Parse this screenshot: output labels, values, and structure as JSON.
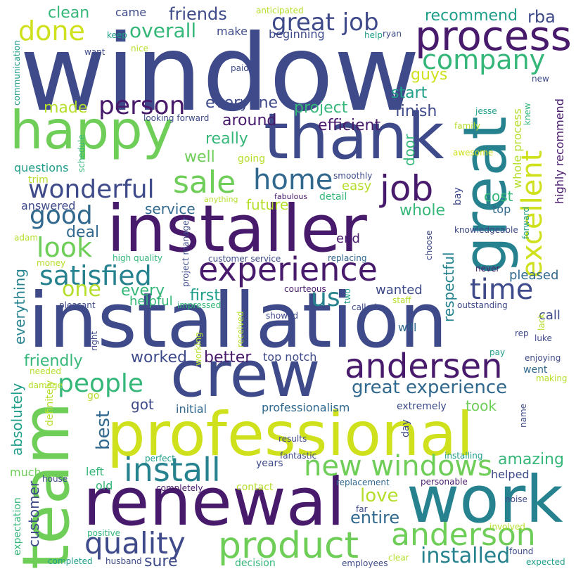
{
  "palette": {
    "dark_purple": "#481a6c",
    "indigo": "#3e4a89",
    "blue": "#31688e",
    "teal": "#26828e",
    "green_teal": "#1f9e89",
    "green": "#35b779",
    "light_green": "#6ece58",
    "yellow_green": "#b5de2b",
    "yellow": "#cfe11c"
  },
  "words": [
    {
      "text": "window",
      "color": "#3e4a89"
    },
    {
      "text": "installation",
      "color": "#3e4a89"
    },
    {
      "text": "installer",
      "color": "#481a6c"
    },
    {
      "text": "thank",
      "color": "#3e4a89"
    },
    {
      "text": "happy",
      "color": "#6ece58"
    },
    {
      "text": "professional",
      "color": "#cfe11c"
    },
    {
      "text": "crew",
      "color": "#3e4a89"
    },
    {
      "text": "renewal",
      "color": "#481a6c"
    },
    {
      "text": "work",
      "color": "#26828e"
    },
    {
      "text": "team",
      "color": "#6ece58"
    },
    {
      "text": "great",
      "color": "#26828e"
    },
    {
      "text": "process",
      "color": "#481a6c"
    },
    {
      "text": "experience",
      "color": "#481a6c"
    },
    {
      "text": "product",
      "color": "#6ece58"
    },
    {
      "text": "quality",
      "color": "#3e4a89"
    },
    {
      "text": "andersen",
      "color": "#481a6c"
    },
    {
      "text": "anderson",
      "color": "#6ece58"
    },
    {
      "text": "new windows",
      "color": "#6ece58"
    },
    {
      "text": "install",
      "color": "#26828e"
    },
    {
      "text": "job",
      "color": "#481a6c"
    },
    {
      "text": "company",
      "color": "#35b779"
    },
    {
      "text": "excellent",
      "color": "#cfe11c"
    },
    {
      "text": "sale",
      "color": "#6ece58"
    },
    {
      "text": "home",
      "color": "#31688e"
    },
    {
      "text": "wonderful",
      "color": "#3e4a89"
    },
    {
      "text": "time",
      "color": "#3e4a89"
    },
    {
      "text": "satisfied",
      "color": "#26828e"
    },
    {
      "text": "look",
      "color": "#6ece58"
    },
    {
      "text": "good",
      "color": "#31688e"
    },
    {
      "text": "person",
      "color": "#481a6c"
    },
    {
      "text": "done",
      "color": "#cfe11c"
    },
    {
      "text": "great job",
      "color": "#3e4a89"
    },
    {
      "text": "people",
      "color": "#35b779"
    },
    {
      "text": "great experience",
      "color": "#31688e"
    },
    {
      "text": "installed",
      "color": "#26828e"
    },
    {
      "text": "us",
      "color": "#26828e"
    },
    {
      "text": "one",
      "color": "#b5de2b"
    },
    {
      "text": "overall",
      "color": "#35b779"
    },
    {
      "text": "best",
      "color": "#31688e"
    },
    {
      "text": "love",
      "color": "#b5de2b"
    },
    {
      "text": "entire",
      "color": "#31688e"
    },
    {
      "text": "amazing",
      "color": "#35b779"
    },
    {
      "text": "sure",
      "color": "#3e4a89"
    },
    {
      "text": "friends",
      "color": "#3e4a89"
    },
    {
      "text": "clean",
      "color": "#35b779"
    },
    {
      "text": "came",
      "color": "#3e4a89"
    },
    {
      "text": "recommend",
      "color": "#1f9e89"
    },
    {
      "text": "rba",
      "color": "#3e4a89"
    },
    {
      "text": "anticipated",
      "color": "#b5de2b"
    },
    {
      "text": "keep",
      "color": "#1f9e89"
    },
    {
      "text": "make",
      "color": "#3e4a89"
    },
    {
      "text": "beginning",
      "color": "#3e4a89"
    },
    {
      "text": "help",
      "color": "#1f9e89"
    },
    {
      "text": "ryan",
      "color": "#3e4a89"
    },
    {
      "text": "want",
      "color": "#3e4a89"
    },
    {
      "text": "nice",
      "color": "#b5de2b"
    },
    {
      "text": "paid",
      "color": "#3e4a89"
    },
    {
      "text": "guys",
      "color": "#cfe11c"
    },
    {
      "text": "start",
      "color": "#1f9e89"
    },
    {
      "text": "finish",
      "color": "#3e4a89"
    },
    {
      "text": "project",
      "color": "#35b779"
    },
    {
      "text": "made",
      "color": "#b5de2b"
    },
    {
      "text": "everyone",
      "color": "#3e4a89"
    },
    {
      "text": "around",
      "color": "#481a6c"
    },
    {
      "text": "efficient",
      "color": "#481a6c"
    },
    {
      "text": "really",
      "color": "#35b779"
    },
    {
      "text": "well",
      "color": "#6ece58"
    },
    {
      "text": "going",
      "color": "#b5de2b"
    },
    {
      "text": "easy",
      "color": "#b5de2b"
    },
    {
      "text": "future",
      "color": "#b5de2b"
    },
    {
      "text": "whole",
      "color": "#35b779"
    },
    {
      "text": "cost",
      "color": "#35b779"
    },
    {
      "text": "top",
      "color": "#31688e"
    },
    {
      "text": "service",
      "color": "#31688e"
    },
    {
      "text": "deal",
      "color": "#31688e"
    },
    {
      "text": "answered",
      "color": "#3e4a89"
    },
    {
      "text": "questions",
      "color": "#1f9e89"
    },
    {
      "text": "trim",
      "color": "#b5de2b"
    },
    {
      "text": "end",
      "color": "#481a6c"
    },
    {
      "text": "detail",
      "color": "#35b779"
    },
    {
      "text": "anything",
      "color": "#b5de2b"
    },
    {
      "text": "fabulous",
      "color": "#481a6c"
    },
    {
      "text": "smoothly",
      "color": "#3e4a89"
    },
    {
      "text": "every",
      "color": "#35b779"
    },
    {
      "text": "first",
      "color": "#1f9e89"
    },
    {
      "text": "helpful",
      "color": "#35b779"
    },
    {
      "text": "high quality",
      "color": "#35b779"
    },
    {
      "text": "customer service",
      "color": "#3e4a89"
    },
    {
      "text": "replacing",
      "color": "#31688e"
    },
    {
      "text": "courteous",
      "color": "#481a6c"
    },
    {
      "text": "pleasant",
      "color": "#3e4a89"
    },
    {
      "text": "impressed",
      "color": "#35b779"
    },
    {
      "text": "showed",
      "color": "#3e4a89"
    },
    {
      "text": "called",
      "color": "#3e4a89"
    },
    {
      "text": "staff",
      "color": "#b5de2b"
    },
    {
      "text": "wanted",
      "color": "#3e4a89"
    },
    {
      "text": "pleased",
      "color": "#31688e"
    },
    {
      "text": "outstanding",
      "color": "#3e4a89"
    },
    {
      "text": "call",
      "color": "#3e4a89"
    },
    {
      "text": "will",
      "color": "#31688e"
    },
    {
      "text": "rep",
      "color": "#3e4a89"
    },
    {
      "text": "luke",
      "color": "#3e4a89"
    },
    {
      "text": "pay",
      "color": "#1f9e89"
    },
    {
      "text": "enjoying",
      "color": "#3e4a89"
    },
    {
      "text": "went",
      "color": "#31688e"
    },
    {
      "text": "making",
      "color": "#b5de2b"
    },
    {
      "text": "worked",
      "color": "#3e4a89"
    },
    {
      "text": "better",
      "color": "#481a6c"
    },
    {
      "text": "top notch",
      "color": "#3e4a89"
    },
    {
      "text": "friendly",
      "color": "#35b779"
    },
    {
      "text": "needed",
      "color": "#b5de2b"
    },
    {
      "text": "damage",
      "color": "#b5de2b"
    },
    {
      "text": "got",
      "color": "#3e4a89"
    },
    {
      "text": "initial",
      "color": "#31688e"
    },
    {
      "text": "professionalism",
      "color": "#31688e"
    },
    {
      "text": "extremely",
      "color": "#3e4a89"
    },
    {
      "text": "took",
      "color": "#6ece58"
    },
    {
      "text": "go",
      "color": "#b5de2b"
    },
    {
      "text": "results",
      "color": "#3e4a89"
    },
    {
      "text": "much",
      "color": "#6ece58"
    },
    {
      "text": "perfect",
      "color": "#1f9e89"
    },
    {
      "text": "fantastic",
      "color": "#3e4a89"
    },
    {
      "text": "installing",
      "color": "#1f9e89"
    },
    {
      "text": "years",
      "color": "#3e4a89"
    },
    {
      "text": "left",
      "color": "#35b779"
    },
    {
      "text": "old",
      "color": "#35b779"
    },
    {
      "text": "house",
      "color": "#3e4a89"
    },
    {
      "text": "completely",
      "color": "#481a6c"
    },
    {
      "text": "contact",
      "color": "#b5de2b"
    },
    {
      "text": "replacement",
      "color": "#31688e"
    },
    {
      "text": "personable",
      "color": "#481a6c"
    },
    {
      "text": "helped",
      "color": "#3e4a89"
    },
    {
      "text": "noise",
      "color": "#3e4a89"
    },
    {
      "text": "far",
      "color": "#3e4a89"
    },
    {
      "text": "positive",
      "color": "#35b779"
    },
    {
      "text": "involved",
      "color": "#b5de2b"
    },
    {
      "text": "found",
      "color": "#3e4a89"
    },
    {
      "text": "completed",
      "color": "#1f9e89"
    },
    {
      "text": "husband",
      "color": "#3e4a89"
    },
    {
      "text": "decision",
      "color": "#35b779"
    },
    {
      "text": "employees",
      "color": "#3e4a89"
    },
    {
      "text": "clear",
      "color": "#b5de2b"
    },
    {
      "text": "expected",
      "color": "#1f9e89"
    },
    {
      "text": "new",
      "color": "#3e4a89"
    },
    {
      "text": "jesse",
      "color": "#1f9e89"
    },
    {
      "text": "looking forward",
      "color": "#3e4a89"
    },
    {
      "text": "family",
      "color": "#b5de2b"
    },
    {
      "text": "awesome",
      "color": "#cfe11c"
    },
    {
      "text": "knowledgeable",
      "color": "#3e4a89"
    },
    {
      "text": "never",
      "color": "#481a6c"
    },
    {
      "text": "adam",
      "color": "#b5de2b"
    },
    {
      "text": "money",
      "color": "#b5de2b"
    },
    {
      "text": "door",
      "color": "#35b779"
    },
    {
      "text": "respectful",
      "color": "#26828e"
    },
    {
      "text": "whole process",
      "color": "#b5de2b"
    },
    {
      "text": "highly recommend",
      "color": "#481a6c"
    },
    {
      "text": "knew",
      "color": "#35b779"
    },
    {
      "text": "bay",
      "color": "#3e4a89"
    },
    {
      "text": "forward",
      "color": "#1f9e89"
    },
    {
      "text": "choose",
      "color": "#3e4a89"
    },
    {
      "text": "project manager",
      "color": "#3e4a89"
    },
    {
      "text": "everything",
      "color": "#26828e"
    },
    {
      "text": "absolutely",
      "color": "#1f9e89"
    },
    {
      "text": "customer",
      "color": "#3e4a89"
    },
    {
      "text": "expectation",
      "color": "#35b779"
    },
    {
      "text": "definitely",
      "color": "#b5de2b"
    },
    {
      "text": "communication",
      "color": "#1f9e89"
    },
    {
      "text": "schedule",
      "color": "#35b779"
    },
    {
      "text": "two",
      "color": "#1f9e89"
    },
    {
      "text": "right",
      "color": "#3e4a89"
    },
    {
      "text": "working",
      "color": "#b5de2b"
    },
    {
      "text": "received",
      "color": "#b5de2b"
    },
    {
      "text": "day",
      "color": "#3e4a89"
    },
    {
      "text": "name",
      "color": "#3e4a89"
    },
    {
      "text": "lack",
      "color": "#b5de2b"
    }
  ]
}
